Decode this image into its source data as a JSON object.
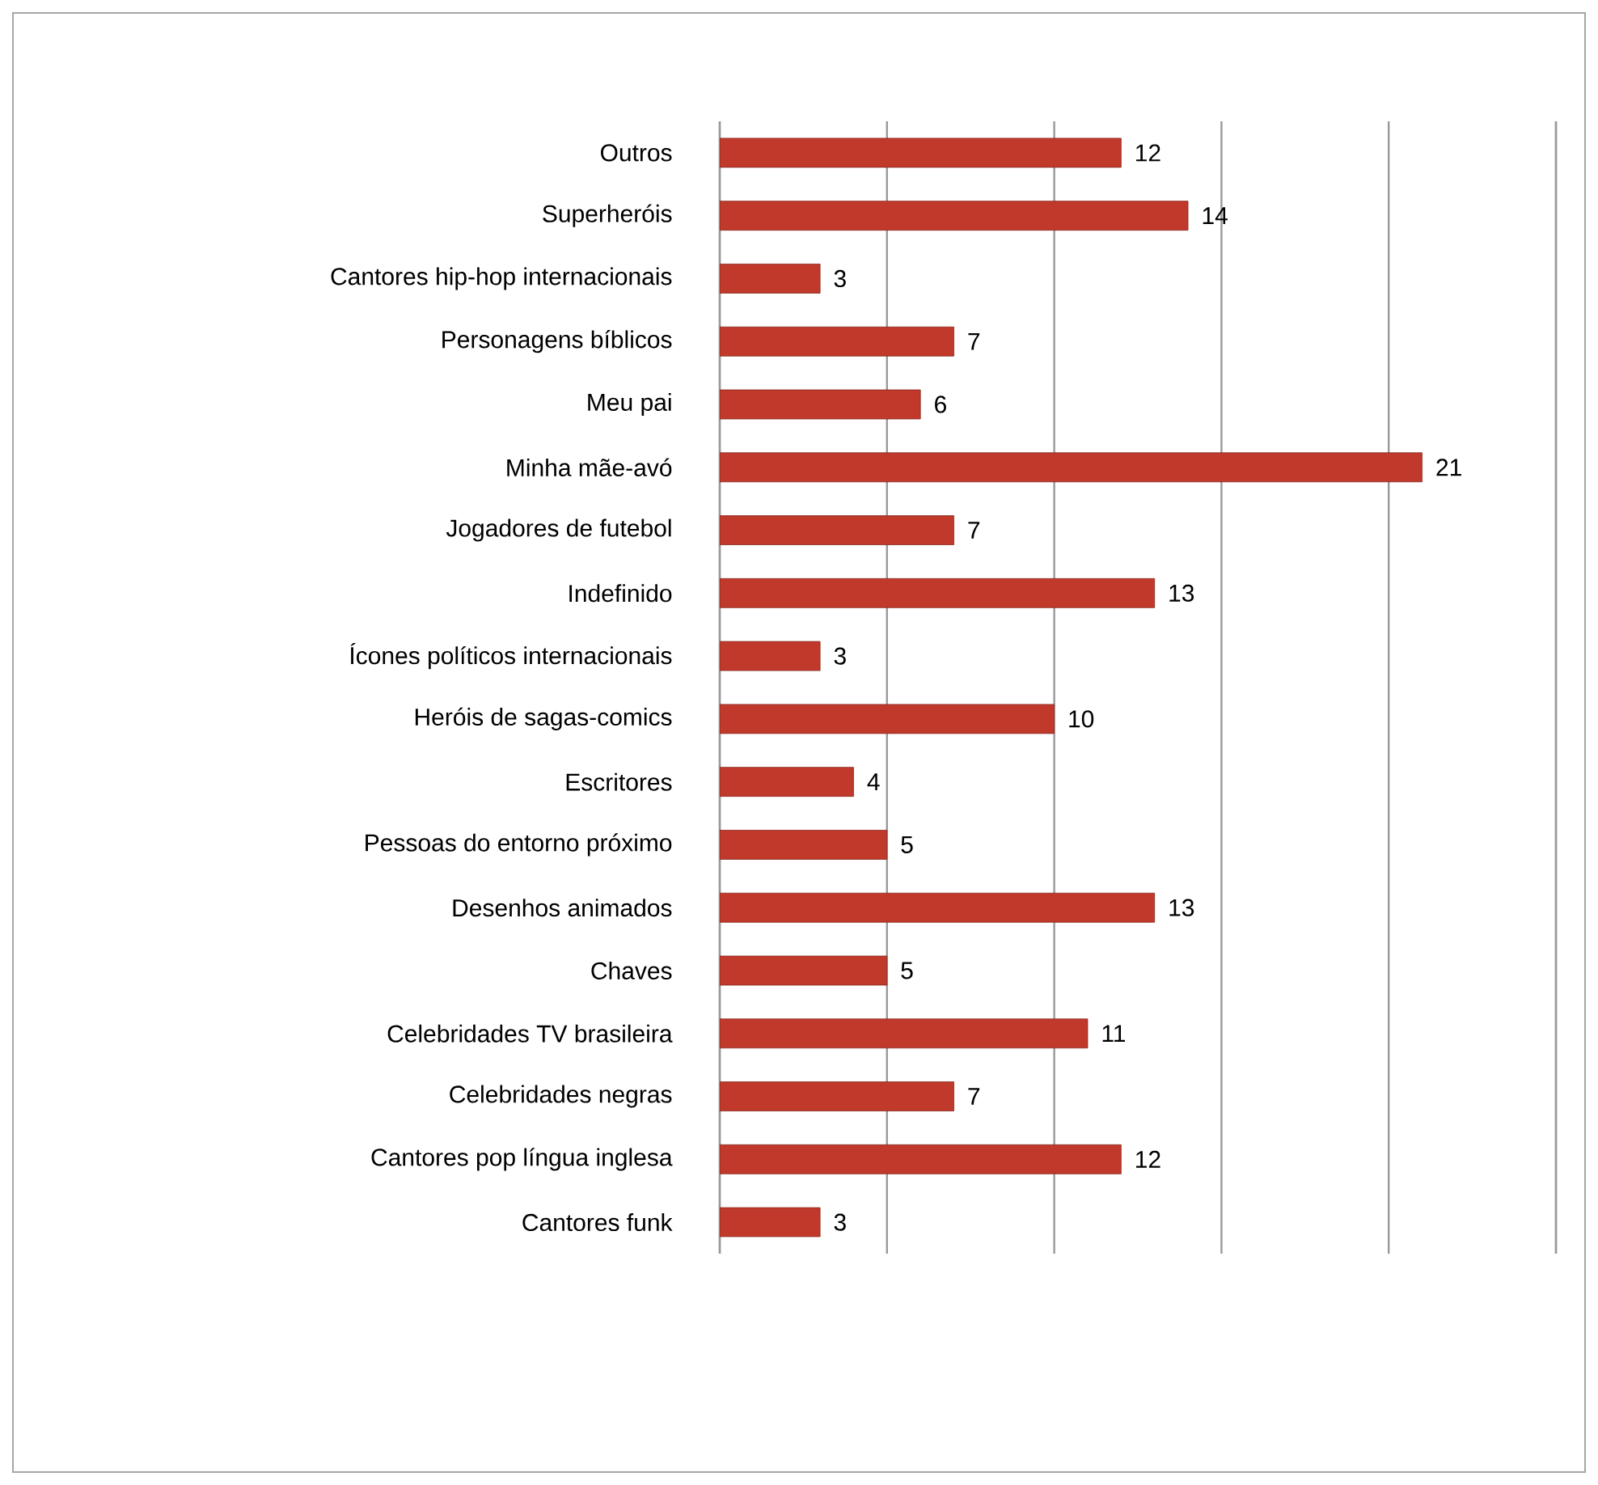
{
  "chart_data": {
    "type": "bar",
    "orientation": "horizontal",
    "categories": [
      "Outros",
      "Superheróis",
      "Cantores hip-hop internacionais",
      "Personagens bíblicos",
      "Meu pai",
      "Minha mãe-avó",
      "Jogadores de futebol",
      "Indefinido",
      "Ícones políticos internacionais",
      "Heróis de sagas-comics",
      "Escritores",
      "Pessoas do entorno próximo",
      "Desenhos animados",
      "Chaves",
      "Celebridades TV brasileira",
      "Celebridades negras",
      "Cantores pop língua inglesa",
      "Cantores funk"
    ],
    "values": [
      12,
      14,
      3,
      7,
      6,
      21,
      7,
      13,
      3,
      10,
      4,
      5,
      13,
      5,
      11,
      7,
      12,
      3
    ],
    "color": "#c0392b",
    "data_labels": true,
    "xlim": [
      0,
      25
    ],
    "xticks": [
      {
        "value": 0,
        "label": null
      },
      {
        "value": 5,
        "label": null
      },
      {
        "value": 10,
        "label": null
      },
      {
        "value": 15,
        "label": null
      },
      {
        "value": 20,
        "label": null
      },
      {
        "value": 25,
        "label": null
      }
    ],
    "grid": "x",
    "tick_labels": "y"
  }
}
